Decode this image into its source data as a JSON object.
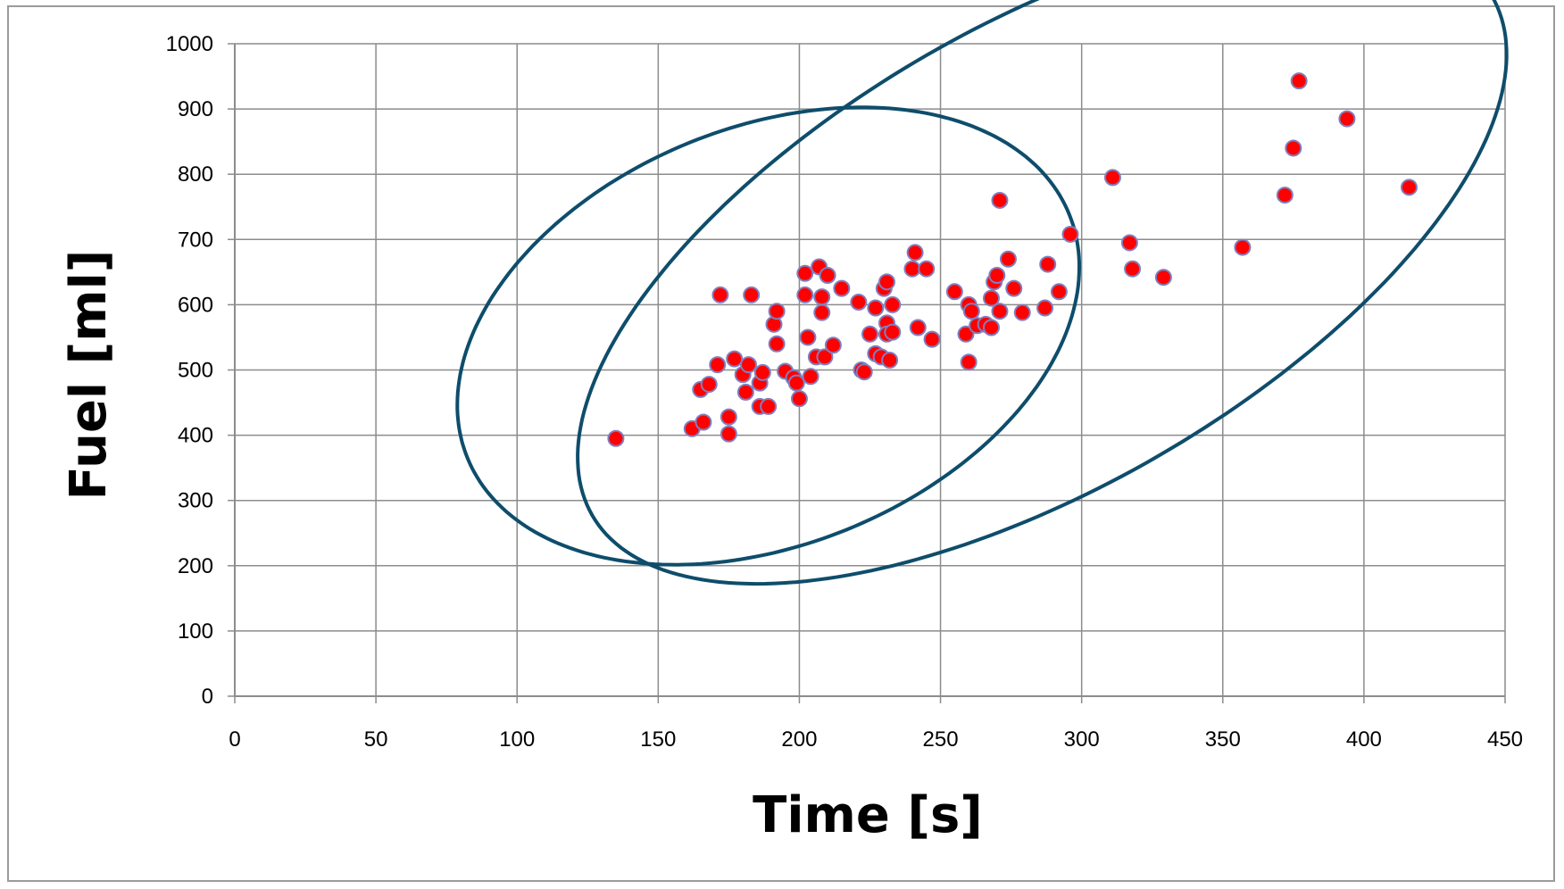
{
  "chart_data": {
    "type": "scatter",
    "title": "",
    "xlabel": "Time [s]",
    "ylabel": "Fuel [ml]",
    "xlim": [
      0,
      450
    ],
    "ylim": [
      0,
      1000
    ],
    "x_ticks": [
      0,
      50,
      100,
      150,
      200,
      250,
      300,
      350,
      400,
      450
    ],
    "y_ticks": [
      0,
      100,
      200,
      300,
      400,
      500,
      600,
      700,
      800,
      900,
      1000
    ],
    "grid": true,
    "legend": "none",
    "marker_color": "#ff0000",
    "marker_edge_color": "#7f7fbf",
    "ellipse_color": "#0e4d6b",
    "points": [
      [
        135,
        395
      ],
      [
        162,
        410
      ],
      [
        166,
        420
      ],
      [
        165,
        470
      ],
      [
        168,
        478
      ],
      [
        171,
        508
      ],
      [
        172,
        615
      ],
      [
        175,
        402
      ],
      [
        175,
        428
      ],
      [
        177,
        517
      ],
      [
        180,
        493
      ],
      [
        181,
        466
      ],
      [
        182,
        508
      ],
      [
        183,
        615
      ],
      [
        186,
        444
      ],
      [
        186,
        480
      ],
      [
        187,
        496
      ],
      [
        189,
        444
      ],
      [
        191,
        570
      ],
      [
        192,
        540
      ],
      [
        192,
        590
      ],
      [
        195,
        498
      ],
      [
        198,
        488
      ],
      [
        199,
        480
      ],
      [
        200,
        456
      ],
      [
        202,
        615
      ],
      [
        202,
        648
      ],
      [
        203,
        550
      ],
      [
        204,
        490
      ],
      [
        206,
        520
      ],
      [
        207,
        658
      ],
      [
        208,
        612
      ],
      [
        208,
        588
      ],
      [
        209,
        520
      ],
      [
        210,
        645
      ],
      [
        212,
        538
      ],
      [
        215,
        625
      ],
      [
        221,
        604
      ],
      [
        222,
        500
      ],
      [
        223,
        497
      ],
      [
        225,
        555
      ],
      [
        227,
        525
      ],
      [
        227,
        595
      ],
      [
        229,
        520
      ],
      [
        230,
        625
      ],
      [
        231,
        572
      ],
      [
        231,
        555
      ],
      [
        231,
        635
      ],
      [
        232,
        515
      ],
      [
        233,
        600
      ],
      [
        233,
        558
      ],
      [
        240,
        655
      ],
      [
        241,
        680
      ],
      [
        242,
        565
      ],
      [
        245,
        655
      ],
      [
        247,
        547
      ],
      [
        255,
        620
      ],
      [
        259,
        555
      ],
      [
        260,
        512
      ],
      [
        260,
        600
      ],
      [
        261,
        590
      ],
      [
        263,
        568
      ],
      [
        266,
        570
      ],
      [
        268,
        610
      ],
      [
        268,
        565
      ],
      [
        269,
        635
      ],
      [
        270,
        645
      ],
      [
        271,
        590
      ],
      [
        271,
        760
      ],
      [
        274,
        670
      ],
      [
        276,
        625
      ],
      [
        279,
        588
      ],
      [
        287,
        595
      ],
      [
        288,
        662
      ],
      [
        292,
        620
      ],
      [
        296,
        708
      ],
      [
        311,
        795
      ],
      [
        317,
        695
      ],
      [
        318,
        655
      ],
      [
        329,
        642
      ],
      [
        357,
        688
      ],
      [
        372,
        768
      ],
      [
        375,
        840
      ],
      [
        377,
        943
      ],
      [
        394,
        885
      ],
      [
        416,
        780
      ]
    ],
    "ellipses": [
      {
        "cx": 189,
        "cy": 552,
        "rx": 115,
        "ry": 74,
        "angle_deg": 22
      },
      {
        "cx": 286,
        "cy": 675,
        "rx": 184,
        "ry": 82,
        "angle_deg": 30
      }
    ]
  }
}
